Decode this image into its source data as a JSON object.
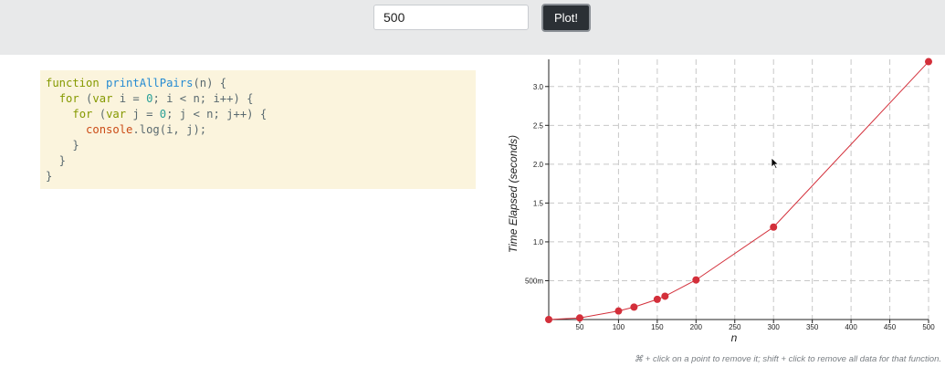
{
  "controls": {
    "n_value": "500",
    "plot_label": "Plot!"
  },
  "code": {
    "lines": [
      [
        {
          "t": "function ",
          "c": "kw"
        },
        {
          "t": "printAllPairs",
          "c": "fn"
        },
        {
          "t": "(n) {",
          "c": ""
        }
      ],
      [
        {
          "t": "  ",
          "c": ""
        },
        {
          "t": "for",
          "c": "kw"
        },
        {
          "t": " (",
          "c": ""
        },
        {
          "t": "var",
          "c": "kw"
        },
        {
          "t": " i = ",
          "c": ""
        },
        {
          "t": "0",
          "c": "num"
        },
        {
          "t": "; i < n; i++) {",
          "c": ""
        }
      ],
      [
        {
          "t": "    ",
          "c": ""
        },
        {
          "t": "for",
          "c": "kw"
        },
        {
          "t": " (",
          "c": ""
        },
        {
          "t": "var",
          "c": "kw"
        },
        {
          "t": " j = ",
          "c": ""
        },
        {
          "t": "0",
          "c": "num"
        },
        {
          "t": "; j < n; j++) {",
          "c": ""
        }
      ],
      [
        {
          "t": "      ",
          "c": ""
        },
        {
          "t": "console",
          "c": "obj"
        },
        {
          "t": ".log(i, j);",
          "c": ""
        }
      ],
      [
        {
          "t": "    }",
          "c": ""
        }
      ],
      [
        {
          "t": "  }",
          "c": ""
        }
      ],
      [
        {
          "t": "}",
          "c": ""
        }
      ]
    ]
  },
  "chart_data": {
    "type": "line",
    "xlabel": "n",
    "ylabel": "Time Elapsed (seconds)",
    "xlim": [
      10,
      500
    ],
    "ylim": [
      0,
      3.35
    ],
    "x_ticks": [
      50,
      100,
      150,
      200,
      250,
      300,
      350,
      400,
      450,
      500
    ],
    "y_ticks": [
      {
        "v": 0.5,
        "label": "500m"
      },
      {
        "v": 1.0,
        "label": "1.0"
      },
      {
        "v": 1.5,
        "label": "1.5"
      },
      {
        "v": 2.0,
        "label": "2.0"
      },
      {
        "v": 2.5,
        "label": "2.5"
      },
      {
        "v": 3.0,
        "label": "3.0"
      }
    ],
    "grid": true,
    "series": [
      {
        "color": "#d32f3a",
        "x": [
          10,
          50,
          100,
          120,
          150,
          160,
          200,
          300,
          500
        ],
        "y": [
          0.0,
          0.02,
          0.11,
          0.16,
          0.26,
          0.3,
          0.51,
          1.19,
          3.32
        ]
      }
    ]
  },
  "footnote": "⌘ + click on a point to remove it; shift + click to remove all data for that function."
}
